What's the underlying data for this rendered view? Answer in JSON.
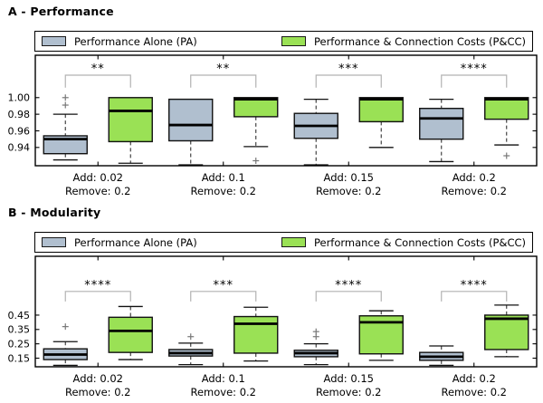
{
  "colors": {
    "pa_fill": "#b0bfcf",
    "pcc_fill": "#9ae155",
    "box_edge": "#111111",
    "median": "#000000",
    "whisker": "#333333",
    "cap": "#111111",
    "flier": "#777777",
    "bracket": "#b2b2b2",
    "axis": "#000000"
  },
  "chart_data": [
    {
      "type": "boxplot",
      "title": "A - Performance",
      "series": [
        "Performance Alone (PA)",
        "Performance & Connection Costs (P&CC)"
      ],
      "ylim": [
        0.918,
        1.051
      ],
      "yticks": [
        0.94,
        0.96,
        0.98,
        1.0
      ],
      "ytick_labels": [
        "0.94",
        "0.96",
        "0.98",
        "1.00"
      ],
      "sig_line_value": 1.027,
      "sig_drop_value": 1.012,
      "groups": [
        {
          "label": [
            "Add: 0.02",
            "Remove: 0.2"
          ],
          "significance": "**",
          "boxes": [
            {
              "series": "PA",
              "whislo": 0.925,
              "q1": 0.9325,
              "med": 0.95,
              "q3": 0.954,
              "whishi": 0.98,
              "fliers": [
                0.991,
                1.0
              ]
            },
            {
              "series": "P&CC",
              "whislo": 0.921,
              "q1": 0.947,
              "med": 0.984,
              "q3": 1.0,
              "whishi": 1.0,
              "fliers": []
            }
          ]
        },
        {
          "label": [
            "Add: 0.1",
            "Remove: 0.2"
          ],
          "significance": "**",
          "boxes": [
            {
              "series": "PA",
              "whislo": 0.919,
              "q1": 0.948,
              "med": 0.967,
              "q3": 0.998,
              "whishi": 0.998,
              "fliers": []
            },
            {
              "series": "P&CC",
              "whislo": 0.941,
              "q1": 0.977,
              "med": 0.998,
              "q3": 1.0,
              "whishi": 1.0,
              "fliers": [
                0.924
              ]
            }
          ]
        },
        {
          "label": [
            "Add: 0.15",
            "Remove: 0.2"
          ],
          "significance": "***",
          "boxes": [
            {
              "series": "PA",
              "whislo": 0.919,
              "q1": 0.951,
              "med": 0.966,
              "q3": 0.981,
              "whishi": 0.998,
              "fliers": []
            },
            {
              "series": "P&CC",
              "whislo": 0.94,
              "q1": 0.971,
              "med": 0.998,
              "q3": 1.0,
              "whishi": 1.0,
              "fliers": []
            }
          ]
        },
        {
          "label": [
            "Add: 0.2",
            "Remove: 0.2"
          ],
          "significance": "****",
          "boxes": [
            {
              "series": "PA",
              "whislo": 0.923,
              "q1": 0.95,
              "med": 0.975,
              "q3": 0.987,
              "whishi": 0.998,
              "fliers": []
            },
            {
              "series": "P&CC",
              "whislo": 0.943,
              "q1": 0.974,
              "med": 0.998,
              "q3": 1.0,
              "whishi": 1.0,
              "fliers": [
                0.93
              ]
            }
          ]
        }
      ]
    },
    {
      "type": "boxplot",
      "title": "B - Modularity",
      "series": [
        "Performance Alone (PA)",
        "Performance & Connection Costs (P&CC)"
      ],
      "ylim": [
        0.09,
        0.86
      ],
      "yticks": [
        0.15,
        0.25,
        0.35,
        0.45
      ],
      "ytick_labels": [
        "0.15",
        "0.25",
        "0.35",
        "0.45"
      ],
      "sig_line_value": 0.615,
      "sig_drop_value": 0.545,
      "groups": [
        {
          "label": [
            "Add: 0.02",
            "Remove: 0.2"
          ],
          "significance": "****",
          "boxes": [
            {
              "series": "PA",
              "whislo": 0.1,
              "q1": 0.14,
              "med": 0.175,
              "q3": 0.215,
              "whishi": 0.265,
              "fliers": [
                0.37
              ]
            },
            {
              "series": "P&CC",
              "whislo": 0.14,
              "q1": 0.19,
              "med": 0.34,
              "q3": 0.435,
              "whishi": 0.51,
              "fliers": []
            }
          ]
        },
        {
          "label": [
            "Add: 0.1",
            "Remove: 0.2"
          ],
          "significance": "***",
          "boxes": [
            {
              "series": "PA",
              "whislo": 0.105,
              "q1": 0.165,
              "med": 0.185,
              "q3": 0.21,
              "whishi": 0.255,
              "fliers": [
                0.3
              ]
            },
            {
              "series": "P&CC",
              "whislo": 0.13,
              "q1": 0.185,
              "med": 0.39,
              "q3": 0.44,
              "whishi": 0.505,
              "fliers": []
            }
          ]
        },
        {
          "label": [
            "Add: 0.15",
            "Remove: 0.2"
          ],
          "significance": "****",
          "boxes": [
            {
              "series": "PA",
              "whislo": 0.105,
              "q1": 0.16,
              "med": 0.185,
              "q3": 0.205,
              "whishi": 0.25,
              "fliers": [
                0.3,
                0.335
              ]
            },
            {
              "series": "P&CC",
              "whislo": 0.135,
              "q1": 0.18,
              "med": 0.4,
              "q3": 0.445,
              "whishi": 0.48,
              "fliers": []
            }
          ]
        },
        {
          "label": [
            "Add: 0.2",
            "Remove: 0.2"
          ],
          "significance": "****",
          "boxes": [
            {
              "series": "PA",
              "whislo": 0.1,
              "q1": 0.135,
              "med": 0.16,
              "q3": 0.19,
              "whishi": 0.235,
              "fliers": []
            },
            {
              "series": "P&CC",
              "whislo": 0.16,
              "q1": 0.21,
              "med": 0.425,
              "q3": 0.45,
              "whishi": 0.52,
              "fliers": []
            }
          ]
        }
      ]
    }
  ]
}
